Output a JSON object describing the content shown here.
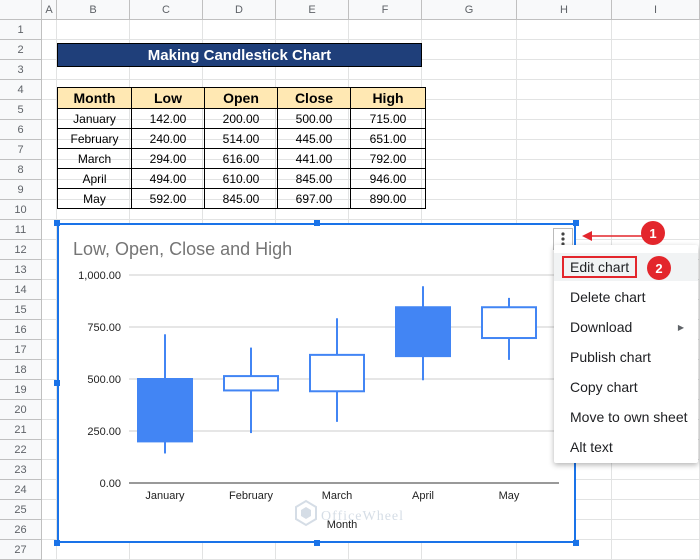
{
  "sheet": {
    "columns": [
      "A",
      "B",
      "C",
      "D",
      "E",
      "F",
      "G",
      "H",
      "I"
    ],
    "rows": [
      "1",
      "2",
      "3",
      "4",
      "5",
      "6",
      "7",
      "8",
      "9",
      "10",
      "11",
      "12",
      "13",
      "14",
      "15",
      "16",
      "17",
      "18",
      "19",
      "20",
      "21",
      "22",
      "23",
      "24",
      "25",
      "26",
      "27"
    ],
    "title": "Making Candlestick Chart",
    "table": {
      "headers": [
        "Month",
        "Low",
        "Open",
        "Close",
        "High"
      ],
      "rows": [
        [
          "January",
          "142.00",
          "200.00",
          "500.00",
          "715.00"
        ],
        [
          "February",
          "240.00",
          "514.00",
          "445.00",
          "651.00"
        ],
        [
          "March",
          "294.00",
          "616.00",
          "441.00",
          "792.00"
        ],
        [
          "April",
          "494.00",
          "610.00",
          "845.00",
          "946.00"
        ],
        [
          "May",
          "592.00",
          "845.00",
          "697.00",
          "890.00"
        ]
      ]
    }
  },
  "chart_data": {
    "type": "candlestick",
    "title": "Low, Open, Close and High",
    "xlabel": "Month",
    "categories": [
      "January",
      "February",
      "March",
      "April",
      "May"
    ],
    "low": [
      142,
      240,
      294,
      494,
      592
    ],
    "open": [
      200,
      514,
      616,
      610,
      845
    ],
    "close": [
      500,
      445,
      441,
      845,
      697
    ],
    "high": [
      715,
      651,
      792,
      946,
      890
    ],
    "ylim": [
      0,
      1000
    ],
    "yticks": [
      "1,000.00",
      "750.00",
      "500.00",
      "250.00",
      "0.00"
    ],
    "colors": {
      "rising": "#4285f4",
      "falling_fill": "#ffffff",
      "line": "#4285f4"
    },
    "grid": true
  },
  "menu": {
    "items": [
      "Edit chart",
      "Delete chart",
      "Download",
      "Publish chart",
      "Copy chart",
      "Move to own sheet",
      "Alt text"
    ],
    "highlighted": "Edit chart"
  },
  "callouts": {
    "one": "1",
    "two": "2"
  },
  "watermark": "OfficeWheel",
  "icons": {
    "kebab": "more-vert-icon",
    "submenu": "triangle-right-icon"
  }
}
